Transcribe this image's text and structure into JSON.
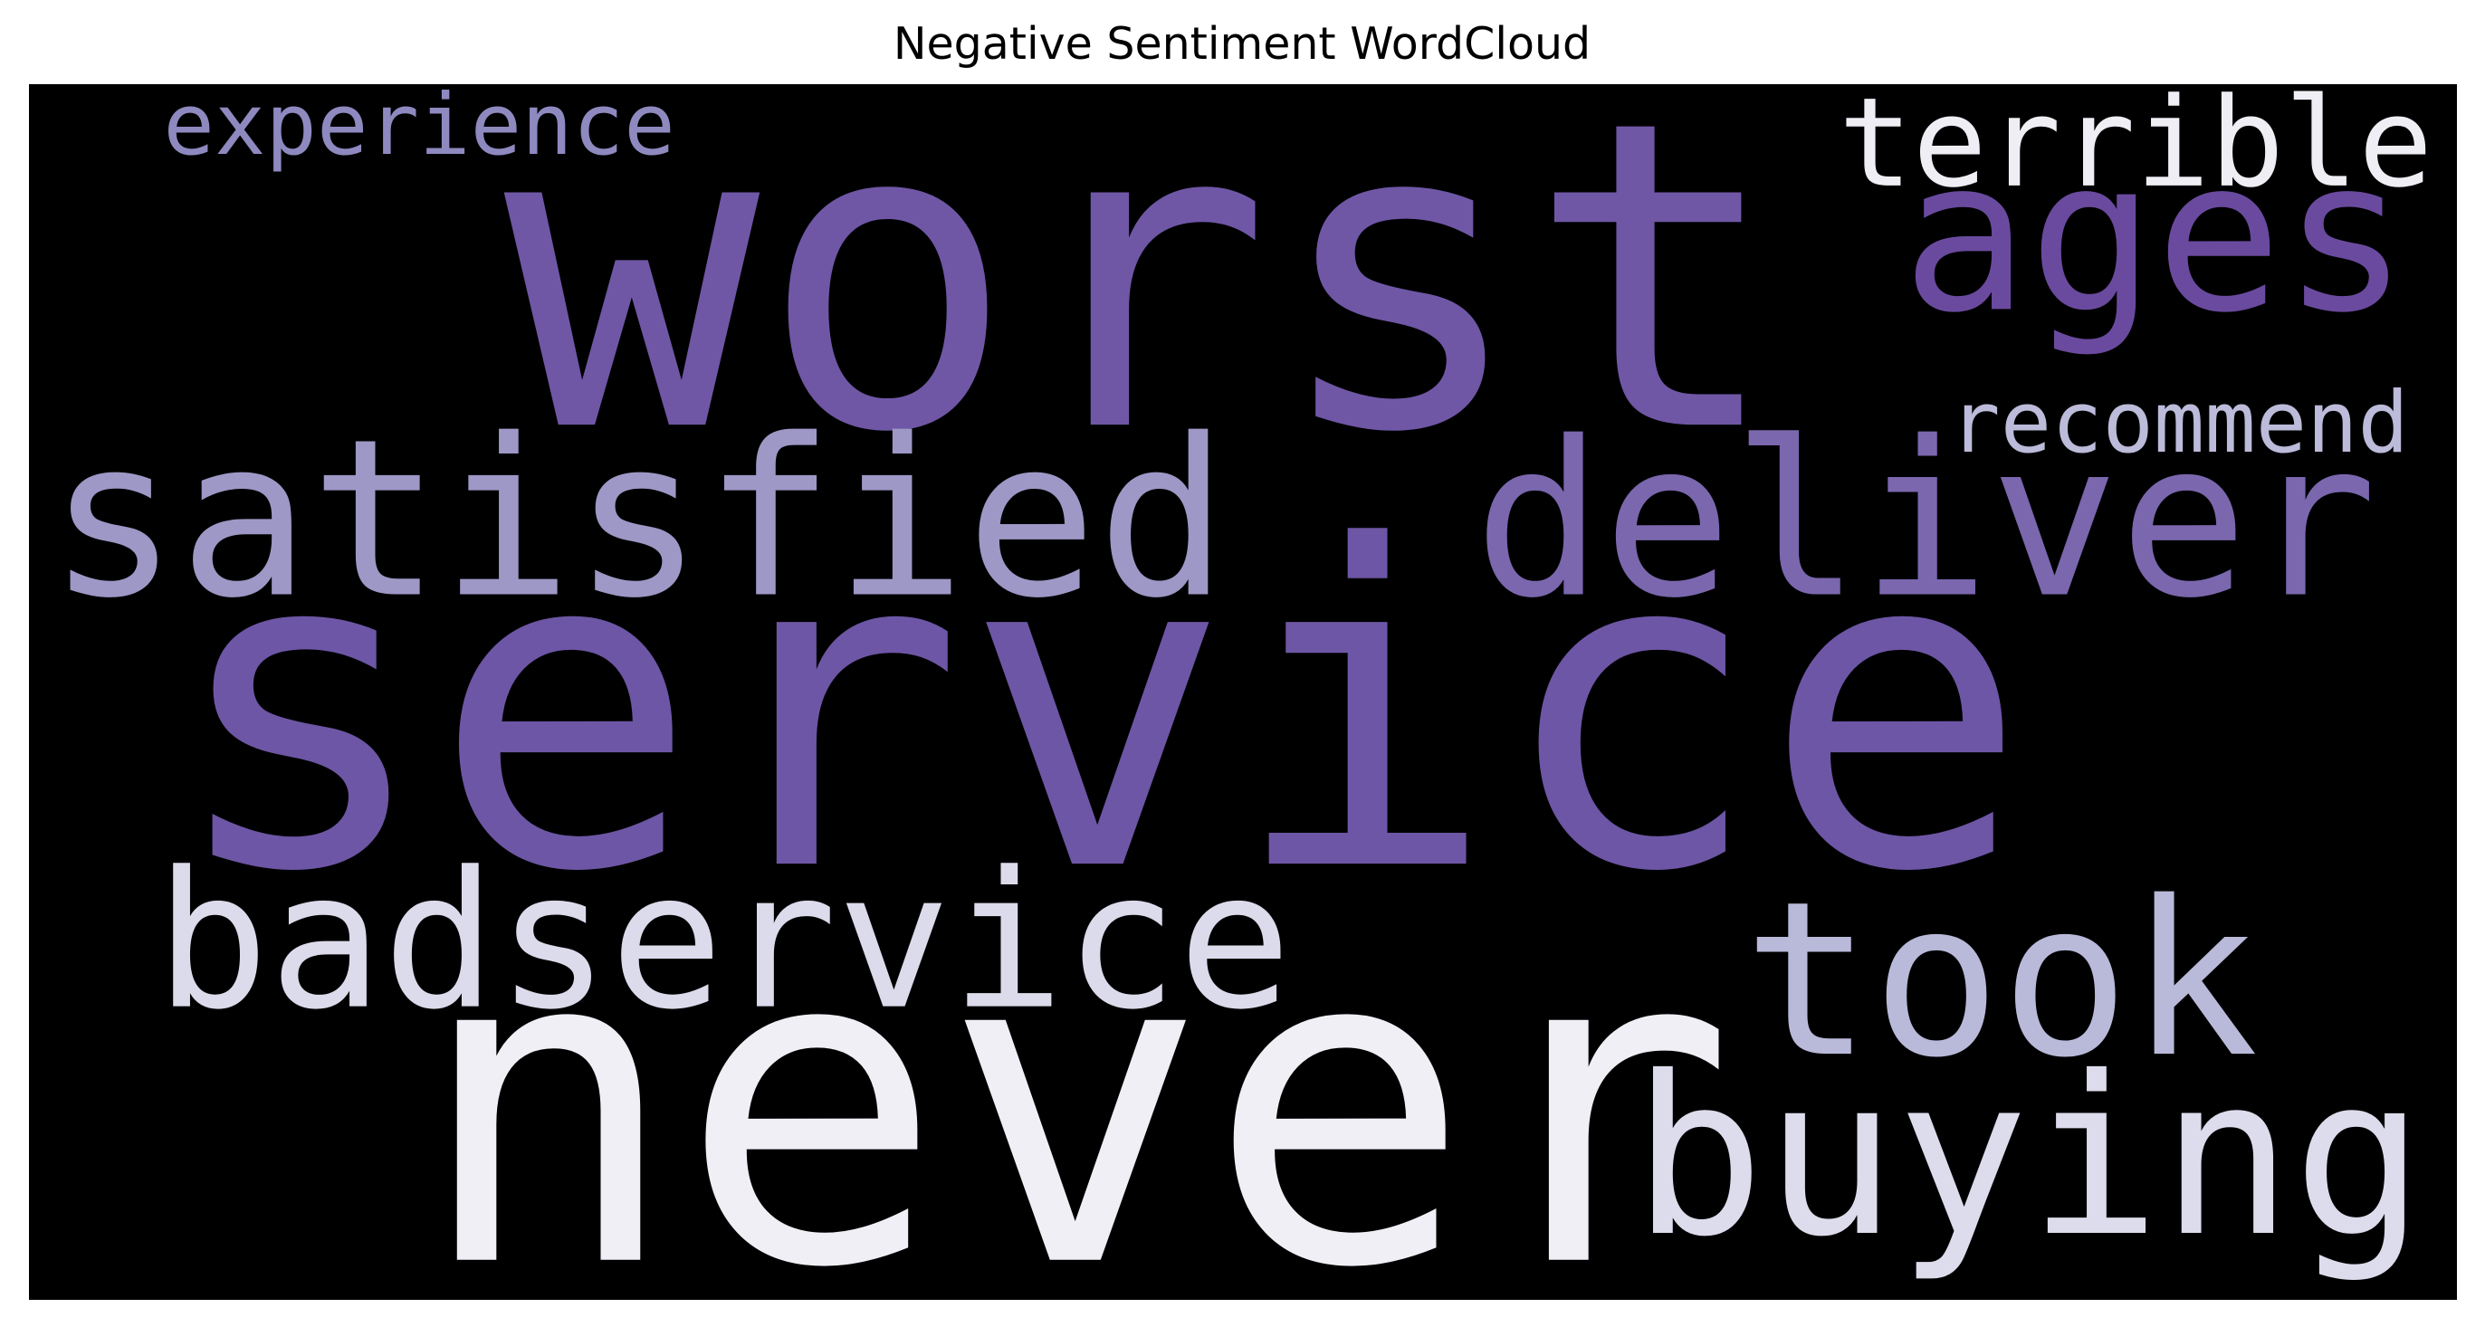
{
  "title": "Negative Sentiment WordCloud",
  "background": "#000000",
  "words": [
    {
      "text": "experience",
      "color": "#8e89bf"
    },
    {
      "text": "worst",
      "color": "#6f57a6"
    },
    {
      "text": "terrible",
      "color": "#f0eef5"
    },
    {
      "text": "ages",
      "color": "#6a4a9f"
    },
    {
      "text": "recommend",
      "color": "#bcbbda"
    },
    {
      "text": "satisfied",
      "color": "#9d98c6"
    },
    {
      "text": "deliver",
      "color": "#7a67ae"
    },
    {
      "text": "service",
      "color": "#6d56a5"
    },
    {
      "text": "badservice",
      "color": "#dcdbec"
    },
    {
      "text": "took",
      "color": "#b9b9d9"
    },
    {
      "text": "never",
      "color": "#f1eff6"
    },
    {
      "text": "buying",
      "color": "#dddcec"
    }
  ]
}
